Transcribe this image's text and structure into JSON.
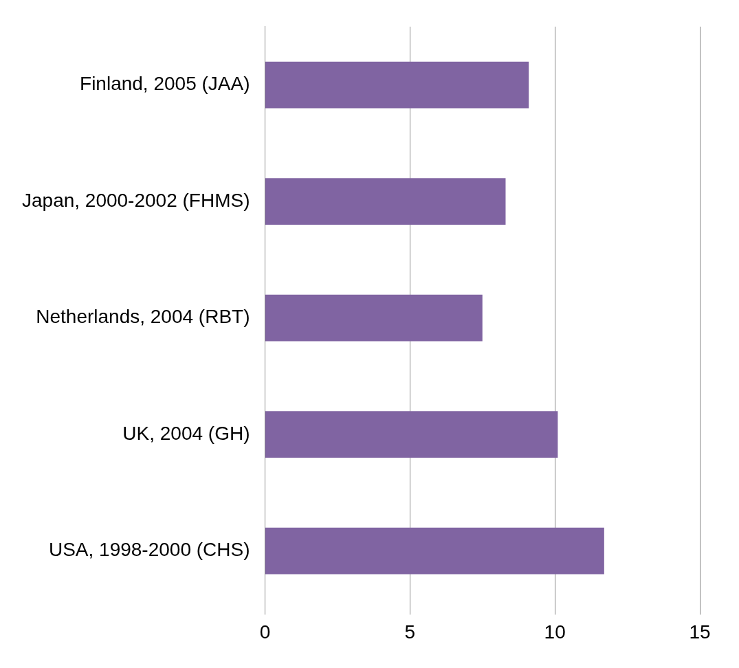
{
  "chart_data": {
    "type": "bar",
    "orientation": "horizontal",
    "categories": [
      "Finland, 2005 (JAA)",
      "Japan, 2000-2002 (FHMS)",
      "Netherlands, 2004 (RBT)",
      "UK, 2004 (GH)",
      "USA, 1998-2000 (CHS)"
    ],
    "values": [
      9.1,
      8.3,
      7.5,
      10.1,
      11.7
    ],
    "color": "#8064a2",
    "xlim": [
      0,
      15
    ],
    "xticks": [
      0,
      5,
      10,
      15
    ],
    "grid": "x",
    "legend": false
  }
}
